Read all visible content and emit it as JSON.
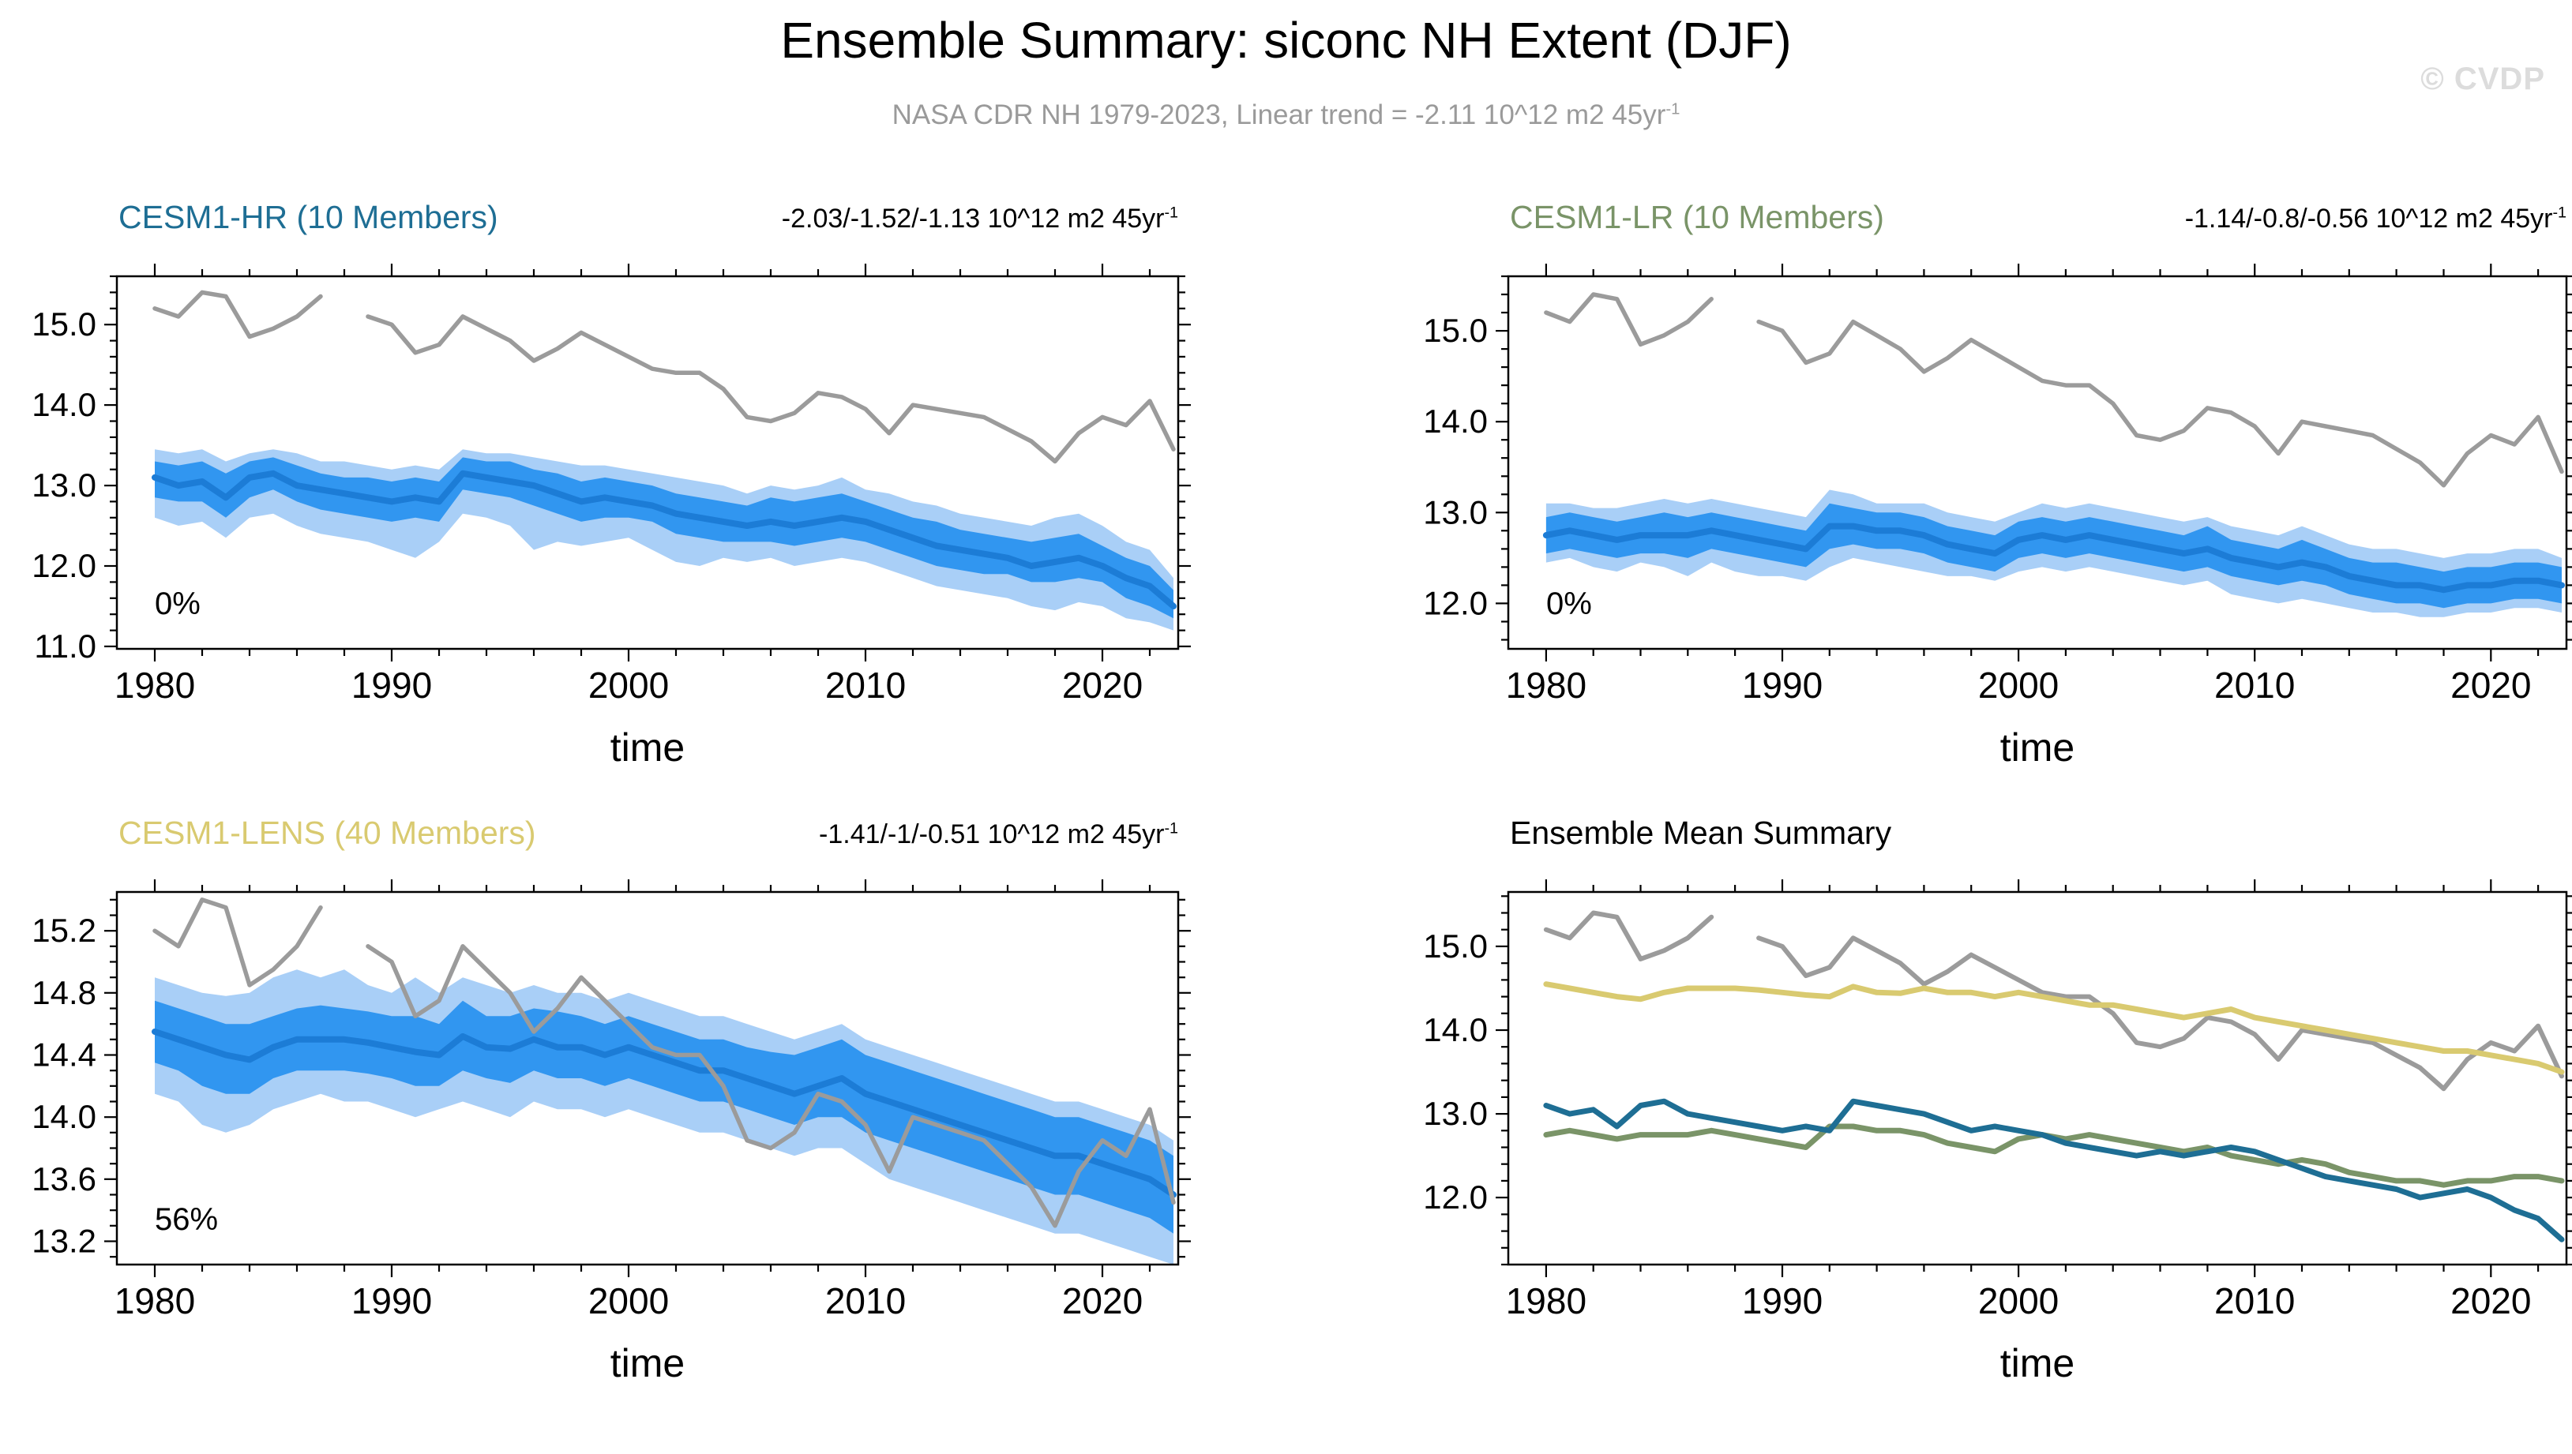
{
  "page": {
    "title": "Ensemble Summary: siconc NH Extent (DJF)",
    "subtitle": "NASA CDR NH 1979-2023, Linear trend = -2.11 10^12 m2 45yr",
    "subtitle_sup": "-1",
    "watermark": "© CVDP"
  },
  "colors": {
    "obs_line": "#9b9b9b",
    "band_outer": "#a9cff7",
    "band_inner": "#3196f0",
    "mean_line": "#1c7cd6",
    "hr_line": "#1e6e94",
    "lr_line": "#7a9468",
    "lens_line": "#d9ca70",
    "axis": "#000000",
    "subtitle_text": "#9a9a9a",
    "watermark_text": "#dcdcdc"
  },
  "chart_data": {
    "type": "line",
    "xlabel": "time",
    "xlim": [
      1978.4,
      2023.2
    ],
    "xticks": [
      1980,
      1990,
      2000,
      2010,
      2020
    ],
    "x_minor_step": 2,
    "years": [
      1980,
      1981,
      1982,
      1983,
      1984,
      1985,
      1986,
      1987,
      1988,
      1989,
      1990,
      1991,
      1992,
      1993,
      1994,
      1995,
      1996,
      1997,
      1998,
      1999,
      2000,
      2001,
      2002,
      2003,
      2004,
      2005,
      2006,
      2007,
      2008,
      2009,
      2010,
      2011,
      2012,
      2013,
      2014,
      2015,
      2016,
      2017,
      2018,
      2019,
      2020,
      2021,
      2022,
      2023
    ],
    "obs_name": "NASA CDR",
    "obs": [
      15.2,
      15.1,
      15.4,
      15.35,
      14.85,
      14.95,
      15.1,
      15.35,
      null,
      15.1,
      15.0,
      14.65,
      14.75,
      15.1,
      14.95,
      14.8,
      14.55,
      14.7,
      14.9,
      14.75,
      14.6,
      14.45,
      14.4,
      14.4,
      14.2,
      13.85,
      13.8,
      13.9,
      14.15,
      14.1,
      13.95,
      13.65,
      14.0,
      13.95,
      13.9,
      13.85,
      13.7,
      13.55,
      13.3,
      13.65,
      13.85,
      13.75,
      14.05,
      13.45
    ],
    "panels": [
      {
        "key": "cesm1-hr",
        "title": "CESM1-HR (10 Members)",
        "title_color": "#1e6e94",
        "trend": "-2.03/-1.52/-1.13 10^12 m2 45yr",
        "trend_sup": "-1",
        "annotation": "0%",
        "ylim": [
          10.97,
          15.6
        ],
        "yticks": [
          11,
          12,
          13,
          14,
          15
        ],
        "ytick_labels": [
          "11.0",
          "12.0",
          "13.0",
          "14.0",
          "15.0"
        ],
        "y_minor_step": 0.2,
        "mean": [
          13.1,
          13.0,
          13.05,
          12.85,
          13.1,
          13.15,
          13.0,
          12.95,
          12.9,
          12.85,
          12.8,
          12.85,
          12.8,
          13.15,
          13.1,
          13.05,
          13.0,
          12.9,
          12.8,
          12.85,
          12.8,
          12.75,
          12.65,
          12.6,
          12.55,
          12.5,
          12.55,
          12.5,
          12.55,
          12.6,
          12.55,
          12.45,
          12.35,
          12.25,
          12.2,
          12.15,
          12.1,
          12.0,
          12.05,
          12.1,
          12.0,
          11.85,
          11.75,
          11.5
        ],
        "inner_hi": [
          13.3,
          13.25,
          13.3,
          13.15,
          13.3,
          13.35,
          13.25,
          13.15,
          13.1,
          13.1,
          13.05,
          13.1,
          13.05,
          13.35,
          13.3,
          13.3,
          13.2,
          13.15,
          13.05,
          13.1,
          13.05,
          13.0,
          12.9,
          12.85,
          12.8,
          12.75,
          12.85,
          12.8,
          12.85,
          12.9,
          12.8,
          12.7,
          12.6,
          12.55,
          12.45,
          12.4,
          12.35,
          12.3,
          12.35,
          12.4,
          12.25,
          12.1,
          12.0,
          11.7
        ],
        "inner_lo": [
          12.85,
          12.8,
          12.8,
          12.6,
          12.85,
          12.95,
          12.8,
          12.7,
          12.65,
          12.6,
          12.55,
          12.6,
          12.55,
          12.95,
          12.9,
          12.85,
          12.75,
          12.65,
          12.55,
          12.6,
          12.6,
          12.55,
          12.4,
          12.35,
          12.3,
          12.3,
          12.3,
          12.25,
          12.3,
          12.35,
          12.3,
          12.2,
          12.1,
          12.0,
          11.95,
          11.9,
          11.9,
          11.8,
          11.8,
          11.85,
          11.8,
          11.6,
          11.5,
          11.35
        ],
        "outer_hi": [
          13.45,
          13.4,
          13.45,
          13.3,
          13.4,
          13.45,
          13.4,
          13.3,
          13.3,
          13.25,
          13.2,
          13.25,
          13.2,
          13.45,
          13.4,
          13.4,
          13.35,
          13.3,
          13.25,
          13.25,
          13.2,
          13.15,
          13.1,
          13.05,
          13.0,
          12.9,
          13.0,
          12.95,
          13.0,
          13.1,
          12.95,
          12.9,
          12.8,
          12.75,
          12.65,
          12.6,
          12.55,
          12.5,
          12.6,
          12.65,
          12.5,
          12.3,
          12.2,
          11.85
        ],
        "outer_lo": [
          12.6,
          12.5,
          12.55,
          12.35,
          12.6,
          12.65,
          12.5,
          12.4,
          12.35,
          12.3,
          12.2,
          12.1,
          12.3,
          12.65,
          12.6,
          12.5,
          12.2,
          12.3,
          12.25,
          12.3,
          12.35,
          12.2,
          12.05,
          12.0,
          12.1,
          12.05,
          12.1,
          12.0,
          12.05,
          12.1,
          12.05,
          11.95,
          11.85,
          11.75,
          11.7,
          11.65,
          11.6,
          11.5,
          11.45,
          11.55,
          11.5,
          11.35,
          11.3,
          11.2
        ]
      },
      {
        "key": "cesm1-lr",
        "title": "CESM1-LR (10 Members)",
        "title_color": "#7a9468",
        "trend": "-1.14/-0.8/-0.56 10^12 m2 45yr",
        "trend_sup": "-1",
        "annotation": "0%",
        "ylim": [
          11.5,
          15.6
        ],
        "yticks": [
          12,
          13,
          14,
          15
        ],
        "ytick_labels": [
          "12.0",
          "13.0",
          "14.0",
          "15.0"
        ],
        "y_minor_step": 0.2,
        "mean": [
          12.75,
          12.8,
          12.75,
          12.7,
          12.75,
          12.75,
          12.75,
          12.8,
          12.75,
          12.7,
          12.65,
          12.6,
          12.85,
          12.85,
          12.8,
          12.8,
          12.75,
          12.65,
          12.6,
          12.55,
          12.7,
          12.75,
          12.7,
          12.75,
          12.7,
          12.65,
          12.6,
          12.55,
          12.6,
          12.5,
          12.45,
          12.4,
          12.45,
          12.4,
          12.3,
          12.25,
          12.2,
          12.2,
          12.15,
          12.2,
          12.2,
          12.25,
          12.25,
          12.2
        ],
        "inner_hi": [
          12.95,
          13.0,
          12.95,
          12.9,
          12.95,
          13.0,
          12.95,
          13.0,
          12.95,
          12.9,
          12.85,
          12.8,
          13.1,
          13.05,
          13.0,
          13.0,
          12.95,
          12.85,
          12.8,
          12.75,
          12.9,
          12.95,
          12.9,
          12.95,
          12.9,
          12.85,
          12.8,
          12.75,
          12.85,
          12.7,
          12.65,
          12.6,
          12.7,
          12.6,
          12.5,
          12.45,
          12.45,
          12.4,
          12.35,
          12.4,
          12.4,
          12.45,
          12.45,
          12.4
        ],
        "inner_lo": [
          12.55,
          12.6,
          12.55,
          12.5,
          12.55,
          12.55,
          12.5,
          12.6,
          12.55,
          12.5,
          12.45,
          12.4,
          12.6,
          12.65,
          12.6,
          12.6,
          12.55,
          12.45,
          12.4,
          12.35,
          12.5,
          12.55,
          12.5,
          12.55,
          12.5,
          12.45,
          12.4,
          12.35,
          12.4,
          12.3,
          12.25,
          12.2,
          12.25,
          12.2,
          12.1,
          12.05,
          12.0,
          12.0,
          11.95,
          12.0,
          12.0,
          12.05,
          12.05,
          12.0
        ],
        "outer_hi": [
          13.1,
          13.1,
          13.05,
          13.05,
          13.1,
          13.15,
          13.1,
          13.15,
          13.1,
          13.05,
          13.0,
          12.95,
          13.25,
          13.2,
          13.1,
          13.1,
          13.1,
          13.0,
          12.95,
          12.9,
          13.0,
          13.1,
          13.05,
          13.1,
          13.05,
          13.0,
          12.95,
          12.9,
          12.95,
          12.85,
          12.8,
          12.75,
          12.85,
          12.75,
          12.65,
          12.6,
          12.6,
          12.55,
          12.5,
          12.55,
          12.55,
          12.6,
          12.6,
          12.5
        ],
        "outer_lo": [
          12.45,
          12.5,
          12.4,
          12.35,
          12.45,
          12.4,
          12.3,
          12.45,
          12.35,
          12.3,
          12.3,
          12.25,
          12.4,
          12.5,
          12.45,
          12.4,
          12.35,
          12.3,
          12.3,
          12.25,
          12.35,
          12.4,
          12.35,
          12.4,
          12.35,
          12.3,
          12.25,
          12.2,
          12.25,
          12.1,
          12.05,
          12.0,
          12.05,
          12.0,
          11.95,
          11.9,
          11.9,
          11.85,
          11.85,
          11.9,
          11.9,
          11.95,
          11.95,
          11.9
        ]
      },
      {
        "key": "cesm1-lens",
        "title": "CESM1-LENS (40 Members)",
        "title_color": "#d9ca70",
        "trend": "-1.41/-1/-0.51 10^12 m2 45yr",
        "trend_sup": "-1",
        "annotation": "56%",
        "ylim": [
          13.05,
          15.45
        ],
        "yticks": [
          13.2,
          13.6,
          14.0,
          14.4,
          14.8,
          15.2
        ],
        "ytick_labels": [
          "13.2",
          "13.6",
          "14.0",
          "14.4",
          "14.8",
          "15.2"
        ],
        "y_minor_step": 0.1,
        "mean": [
          14.55,
          14.5,
          14.45,
          14.4,
          14.37,
          14.45,
          14.5,
          14.5,
          14.5,
          14.48,
          14.45,
          14.42,
          14.4,
          14.52,
          14.45,
          14.44,
          14.5,
          14.45,
          14.45,
          14.4,
          14.45,
          14.4,
          14.35,
          14.3,
          14.3,
          14.25,
          14.2,
          14.15,
          14.2,
          14.25,
          14.15,
          14.1,
          14.05,
          14.0,
          13.95,
          13.9,
          13.85,
          13.8,
          13.75,
          13.75,
          13.7,
          13.65,
          13.6,
          13.5
        ],
        "inner_hi": [
          14.75,
          14.7,
          14.65,
          14.6,
          14.6,
          14.65,
          14.7,
          14.72,
          14.7,
          14.68,
          14.65,
          14.65,
          14.6,
          14.75,
          14.65,
          14.65,
          14.7,
          14.68,
          14.65,
          14.6,
          14.65,
          14.6,
          14.55,
          14.5,
          14.5,
          14.45,
          14.42,
          14.4,
          14.45,
          14.5,
          14.4,
          14.35,
          14.3,
          14.25,
          14.2,
          14.15,
          14.1,
          14.05,
          14.0,
          14.0,
          13.95,
          13.9,
          13.85,
          13.75
        ],
        "inner_lo": [
          14.35,
          14.3,
          14.2,
          14.15,
          14.15,
          14.25,
          14.3,
          14.3,
          14.3,
          14.28,
          14.25,
          14.2,
          14.2,
          14.3,
          14.25,
          14.22,
          14.3,
          14.25,
          14.25,
          14.2,
          14.25,
          14.2,
          14.15,
          14.1,
          14.1,
          14.05,
          14.0,
          13.95,
          14.0,
          14.0,
          13.9,
          13.85,
          13.8,
          13.75,
          13.7,
          13.65,
          13.6,
          13.55,
          13.5,
          13.5,
          13.45,
          13.4,
          13.35,
          13.25
        ],
        "outer_hi": [
          14.9,
          14.85,
          14.8,
          14.78,
          14.8,
          14.9,
          14.95,
          14.9,
          14.95,
          14.85,
          14.8,
          14.9,
          14.8,
          14.9,
          14.85,
          14.8,
          14.85,
          14.8,
          14.8,
          14.75,
          14.8,
          14.75,
          14.7,
          14.65,
          14.65,
          14.6,
          14.55,
          14.5,
          14.55,
          14.6,
          14.5,
          14.45,
          14.4,
          14.35,
          14.3,
          14.25,
          14.2,
          14.15,
          14.1,
          14.1,
          14.05,
          14.0,
          13.95,
          13.85
        ],
        "outer_lo": [
          14.15,
          14.1,
          13.95,
          13.9,
          13.95,
          14.05,
          14.1,
          14.15,
          14.1,
          14.1,
          14.05,
          14.0,
          14.05,
          14.1,
          14.05,
          14.0,
          14.1,
          14.05,
          14.05,
          14.0,
          14.05,
          14.0,
          13.95,
          13.9,
          13.9,
          13.85,
          13.8,
          13.75,
          13.8,
          13.8,
          13.7,
          13.6,
          13.55,
          13.5,
          13.45,
          13.4,
          13.35,
          13.3,
          13.25,
          13.25,
          13.2,
          13.15,
          13.1,
          13.05
        ]
      },
      {
        "key": "ensemble-mean-summary",
        "title": "Ensemble Mean Summary",
        "title_color": "#000000",
        "trend": "",
        "trend_sup": "",
        "annotation": "",
        "ylim": [
          11.2,
          15.65
        ],
        "yticks": [
          12,
          13,
          14,
          15
        ],
        "ytick_labels": [
          "12.0",
          "13.0",
          "14.0",
          "15.0"
        ],
        "y_minor_step": 0.2,
        "series": [
          {
            "name": "NASA CDR",
            "ref": "obs",
            "color": "#9b9b9b",
            "width": 6
          },
          {
            "name": "CESM1-LENS",
            "ref": "panels.2.mean",
            "color": "#d9ca70",
            "width": 7
          },
          {
            "name": "CESM1-LR",
            "ref": "panels.1.mean",
            "color": "#7a9468",
            "width": 7
          },
          {
            "name": "CESM1-HR",
            "ref": "panels.0.mean",
            "color": "#1e6e94",
            "width": 7
          }
        ]
      }
    ]
  }
}
